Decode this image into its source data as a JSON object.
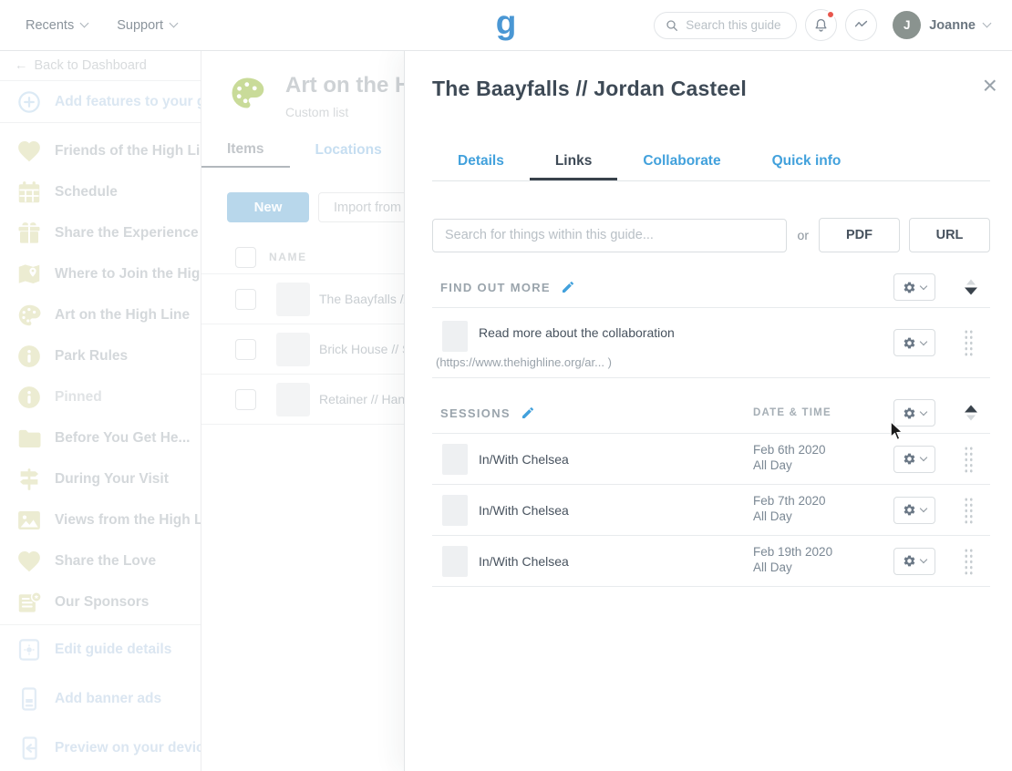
{
  "colors": {
    "accent_blue": "#42a1dc",
    "logo_blue": "#4a97d4",
    "dark_text": "#3e4a56",
    "gray_text": "#8b949c",
    "notification_red": "#e8564c",
    "avatar_gray": "#8a938f"
  },
  "header": {
    "menus": [
      {
        "label": "Recents"
      },
      {
        "label": "Support"
      }
    ],
    "logo_letter": "g",
    "search_placeholder": "Search this guide",
    "user_initial": "J",
    "user_name": "Joanne"
  },
  "sidebar": {
    "back_arrow": "←",
    "back_label": "Back to Dashboard",
    "add_features_label": "Add features to your guide",
    "items": [
      {
        "label": "Friends of the High Line",
        "icon": "heart"
      },
      {
        "label": "Schedule",
        "icon": "calendar"
      },
      {
        "label": "Share the Experience",
        "icon": "gift"
      },
      {
        "label": "Where to Join the High Line",
        "icon": "map"
      },
      {
        "label": "Art on the High Line",
        "icon": "palette"
      },
      {
        "label": "Park Rules",
        "icon": "info"
      },
      {
        "label": "Pinned",
        "icon": "info",
        "muted": true
      },
      {
        "label": "Before You Get He...",
        "icon": "folder"
      },
      {
        "label": "During Your Visit",
        "icon": "signpost"
      },
      {
        "label": "Views from the High Line",
        "icon": "image"
      },
      {
        "label": "Share the Love",
        "icon": "heart"
      },
      {
        "label": "Our Sponsors",
        "icon": "sponsors"
      }
    ],
    "footer_items": [
      {
        "label": "Edit guide details",
        "icon": "gear-square"
      },
      {
        "label": "Add banner ads",
        "icon": "banner-phone"
      },
      {
        "label": "Preview on your device",
        "icon": "phone-arrow"
      }
    ]
  },
  "list_page": {
    "title": "Art on the High Line",
    "subtitle": "Custom list",
    "tabs": [
      {
        "label": "Items",
        "active": true
      },
      {
        "label": "Locations",
        "active": false
      }
    ],
    "new_button": "New",
    "import_button": "Import from file",
    "table": {
      "name_header": "NAME",
      "rows": [
        {
          "name": "The Baayfalls // Jordan Casteel"
        },
        {
          "name": "Brick House // Si"
        },
        {
          "name": "Retainer // Hann"
        }
      ]
    }
  },
  "modal": {
    "title": "The Baayfalls // Jordan Casteel",
    "close_label": "×",
    "tabs": [
      {
        "label": "Details",
        "active": false
      },
      {
        "label": "Links",
        "active": true
      },
      {
        "label": "Collaborate",
        "active": false
      },
      {
        "label": "Quick info",
        "active": false
      }
    ],
    "search_placeholder": "Search for things within this guide...",
    "or_label": "or",
    "pdf_button": "PDF",
    "url_button": "URL",
    "find_out_more": {
      "heading": "FIND OUT MORE",
      "links": [
        {
          "title": "Read more about the collaboration",
          "url": "(https://www.thehighline.org/ar... )"
        }
      ]
    },
    "sessions": {
      "heading": "SESSIONS",
      "date_header": "DATE & TIME",
      "rows": [
        {
          "name": "In/With Chelsea",
          "date": "Feb 6th 2020",
          "time": "All Day"
        },
        {
          "name": "In/With Chelsea",
          "date": "Feb 7th 2020",
          "time": "All Day"
        },
        {
          "name": "In/With Chelsea",
          "date": "Feb 19th 2020",
          "time": "All Day"
        }
      ]
    }
  }
}
